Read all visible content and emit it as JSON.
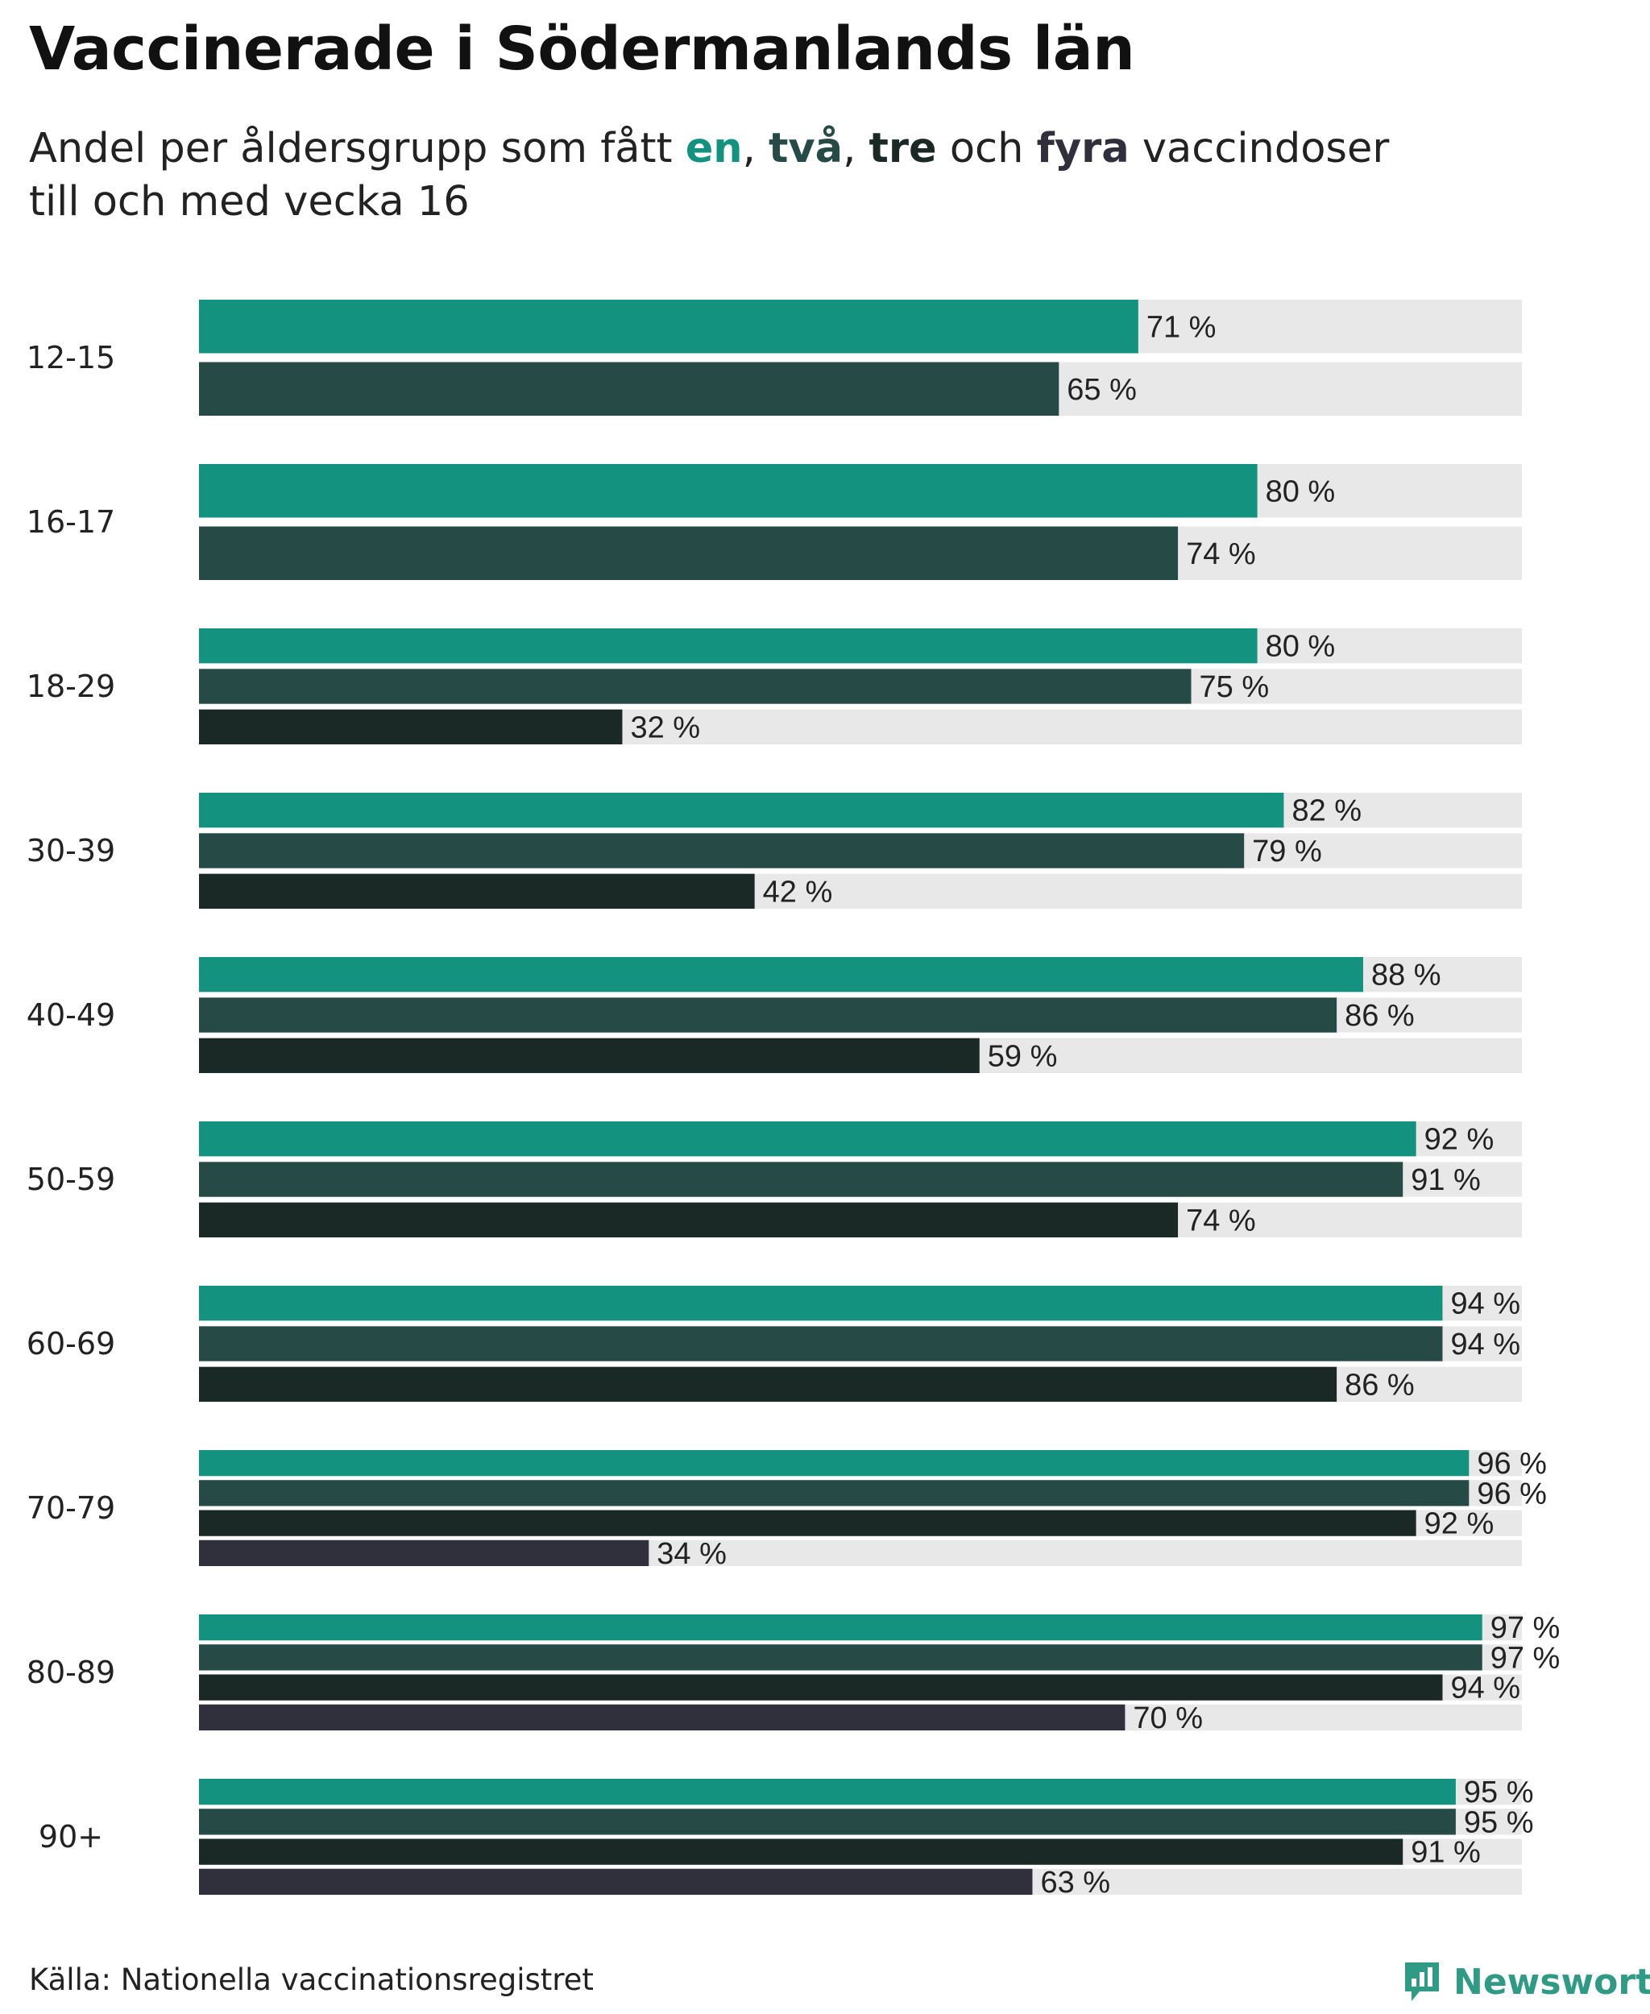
{
  "title": "Vaccinerade i Södermanlands län",
  "subtitle": {
    "prefix": "Andel per åldersgrupp som fått ",
    "dose1": "en",
    "sep1": ", ",
    "dose2": "två",
    "sep2": ", ",
    "dose3": "tre",
    "conj": " och ",
    "dose4": "fyra",
    "suffix": " vaccindoser",
    "line2": "till och med vecka 16"
  },
  "colors": {
    "dose1": "#13937f",
    "dose2": "#264b47",
    "dose3": "#1a2826",
    "dose4": "#302f3c",
    "track": "#e8e8e8"
  },
  "chart_data": {
    "type": "bar",
    "orientation": "horizontal",
    "xlim": [
      0,
      100
    ],
    "value_suffix": " %",
    "categories": [
      "12-15",
      "16-17",
      "18-29",
      "30-39",
      "40-49",
      "50-59",
      "60-69",
      "70-79",
      "80-89",
      "90+"
    ],
    "series": [
      {
        "name": "en",
        "values": [
          71,
          80,
          80,
          82,
          88,
          92,
          94,
          96,
          97,
          95
        ]
      },
      {
        "name": "två",
        "values": [
          65,
          74,
          75,
          79,
          86,
          91,
          94,
          96,
          97,
          95
        ]
      },
      {
        "name": "tre",
        "values": [
          null,
          null,
          32,
          42,
          59,
          74,
          86,
          92,
          94,
          91
        ]
      },
      {
        "name": "fyra",
        "values": [
          null,
          null,
          null,
          null,
          null,
          null,
          null,
          34,
          70,
          63
        ]
      }
    ]
  },
  "footer": {
    "source": "Källa: Nationella vaccinationsregistret",
    "brand": "Newsworthy"
  }
}
